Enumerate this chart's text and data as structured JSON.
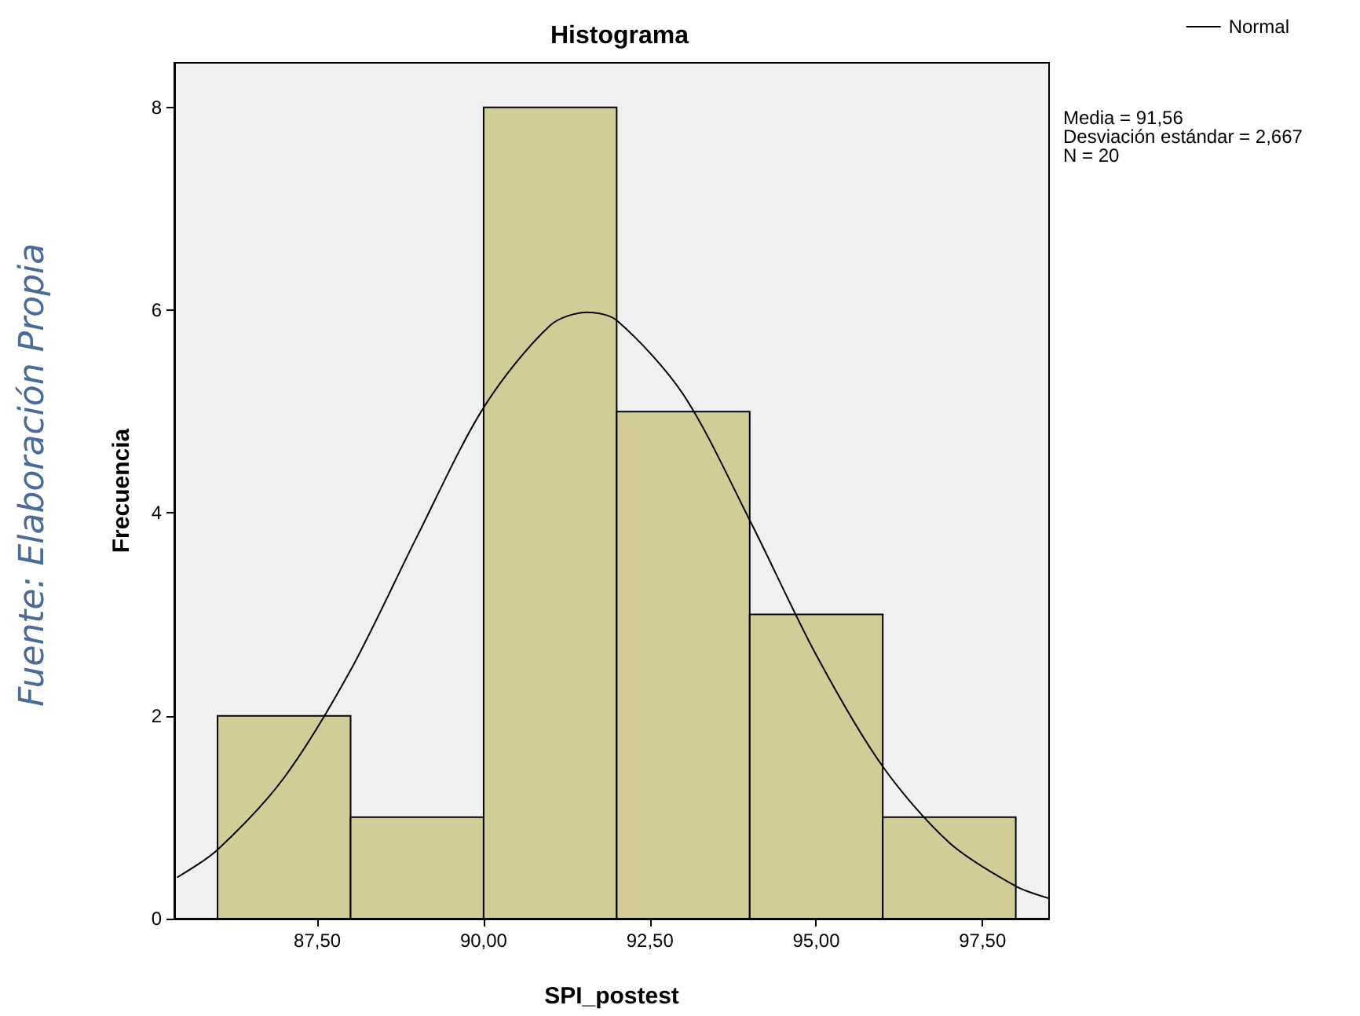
{
  "chart_data": {
    "type": "histogram",
    "title": "Histograma",
    "xlabel": "SPI_postest",
    "ylabel": "Frecuencia",
    "bins": [
      86,
      88,
      90,
      92,
      94,
      96,
      98
    ],
    "values": [
      2,
      1,
      8,
      5,
      3,
      1
    ],
    "color": "#d2cd96",
    "series": [
      {
        "type": "line",
        "name": "Normal",
        "color": "#000000",
        "x": [
          85.4,
          86,
          87,
          88,
          89,
          90,
          91,
          91.56,
          92,
          93,
          94,
          95,
          96,
          97,
          98,
          98.5
        ],
        "values": [
          0.41,
          0.68,
          1.39,
          2.45,
          3.77,
          5.04,
          5.85,
          5.98,
          5.9,
          5.17,
          3.93,
          2.6,
          1.5,
          0.75,
          0.32,
          0.2
        ]
      }
    ],
    "xlim": [
      85.35,
      98.5
    ],
    "xticks": [
      {
        "value": 87.5,
        "label": "87,50"
      },
      {
        "value": 90,
        "label": "90,00"
      },
      {
        "value": 92.5,
        "label": "92,50"
      },
      {
        "value": 95,
        "label": "95,00"
      },
      {
        "value": 97.5,
        "label": "97,50"
      }
    ],
    "ylim": [
      0,
      8.44
    ],
    "yticks": [
      0,
      2,
      4,
      6,
      8
    ],
    "grid": false,
    "legend": "top right",
    "marker": "none",
    "line_style": "solid",
    "annotations": [
      "Media = 91,56",
      "Desviación estándar = 2,667",
      "N = 20",
      "Fuente: Elaboración Propia"
    ]
  }
}
